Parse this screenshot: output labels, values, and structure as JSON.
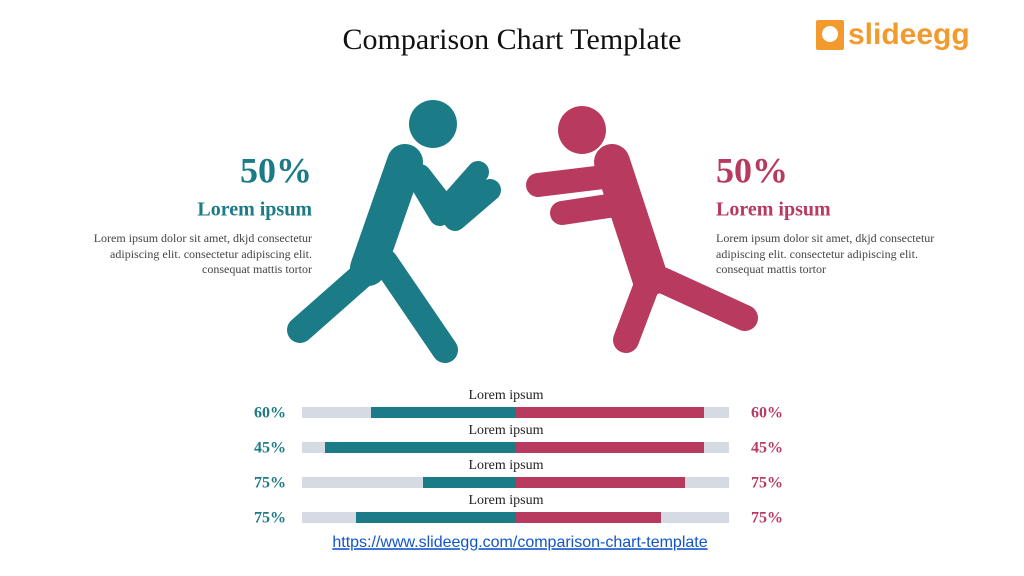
{
  "header": {
    "title": "Comparison Chart Template",
    "logo": "slideegg"
  },
  "left": {
    "percent": "50%",
    "heading": "Lorem ipsum",
    "lines": [
      "Lorem ipsum dolor sit amet, dkjd consectetur",
      "adipiscing elit. consectetur adipiscing elit.",
      "consequat mattis tortor"
    ]
  },
  "right": {
    "percent": "50%",
    "heading": "Lorem ipsum",
    "lines": [
      "Lorem ipsum dolor sit amet, dkjd consectetur",
      "adipiscing elit. consectetur adipiscing elit.",
      "consequat mattis tortor"
    ]
  },
  "rows": [
    {
      "label": "Lorem ipsum",
      "left": "60%",
      "right": "60%"
    },
    {
      "label": "Lorem ipsum",
      "left": "45%",
      "right": "45%"
    },
    {
      "label": "Lorem ipsum",
      "left": "75%",
      "right": "75%"
    },
    {
      "label": "Lorem ipsum",
      "left": "75%",
      "right": "75%"
    }
  ],
  "footer": {
    "url": "https://www.slideegg.com/comparison-chart-template"
  }
}
